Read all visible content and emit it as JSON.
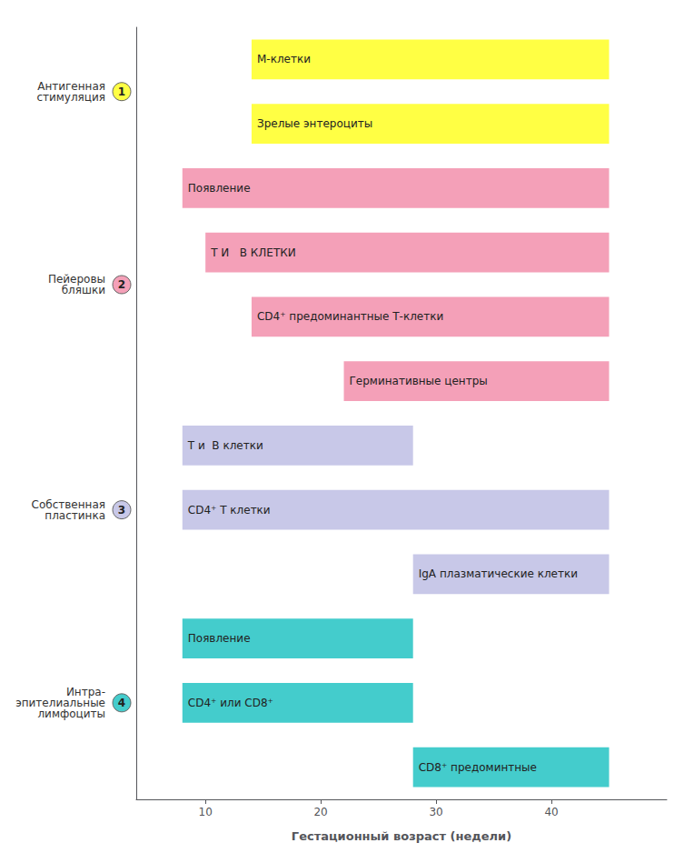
{
  "chart_data": {
    "type": "gantt",
    "orientation": "horizontal",
    "xlabel": "Гестационный возраст (недели)",
    "xlim": [
      4,
      50
    ],
    "xticks": [
      10,
      20,
      30,
      40
    ],
    "data_labels": true,
    "grid": false,
    "groups": [
      {
        "label": "Антигенная\nстимуляция",
        "number": "1",
        "color": "#ffff44",
        "bars": [
          {
            "label": "М-клетки",
            "start": 14,
            "end": 45
          },
          {
            "label": "Зрелые энтероциты",
            "start": 14,
            "end": 45
          }
        ]
      },
      {
        "label": "Пейеровы\nбляшки",
        "number": "2",
        "color": "#f4a0b8",
        "bars": [
          {
            "label": "Появление",
            "start": 8,
            "end": 45
          },
          {
            "label": "Т И   В КЛЕТКИ",
            "start": 10,
            "end": 45
          },
          {
            "label": "CD4⁺ предоминантные Т-клетки",
            "start": 14,
            "end": 45
          },
          {
            "label": "Герминативные центры",
            "start": 22,
            "end": 45
          }
        ]
      },
      {
        "label": "Собственная\nпластинка",
        "number": "3",
        "color": "#c8c8e8",
        "bars": [
          {
            "label": "Т и  В клетки",
            "start": 8,
            "end": 28
          },
          {
            "label": "CD4⁺ Т клетки",
            "start": 8,
            "end": 45
          },
          {
            "label": "IgA плазматические клетки",
            "start": 28,
            "end": 45
          }
        ]
      },
      {
        "label": "Интра-\nэпителиальные\nлимфоциты",
        "number": "4",
        "color": "#44cccc",
        "bars": [
          {
            "label": "Появление",
            "start": 8,
            "end": 28
          },
          {
            "label": "CD4⁺ или CD8⁺",
            "start": 8,
            "end": 28
          },
          {
            "label": "CD8⁺ предоминтные",
            "start": 28,
            "end": 45
          }
        ]
      }
    ]
  }
}
